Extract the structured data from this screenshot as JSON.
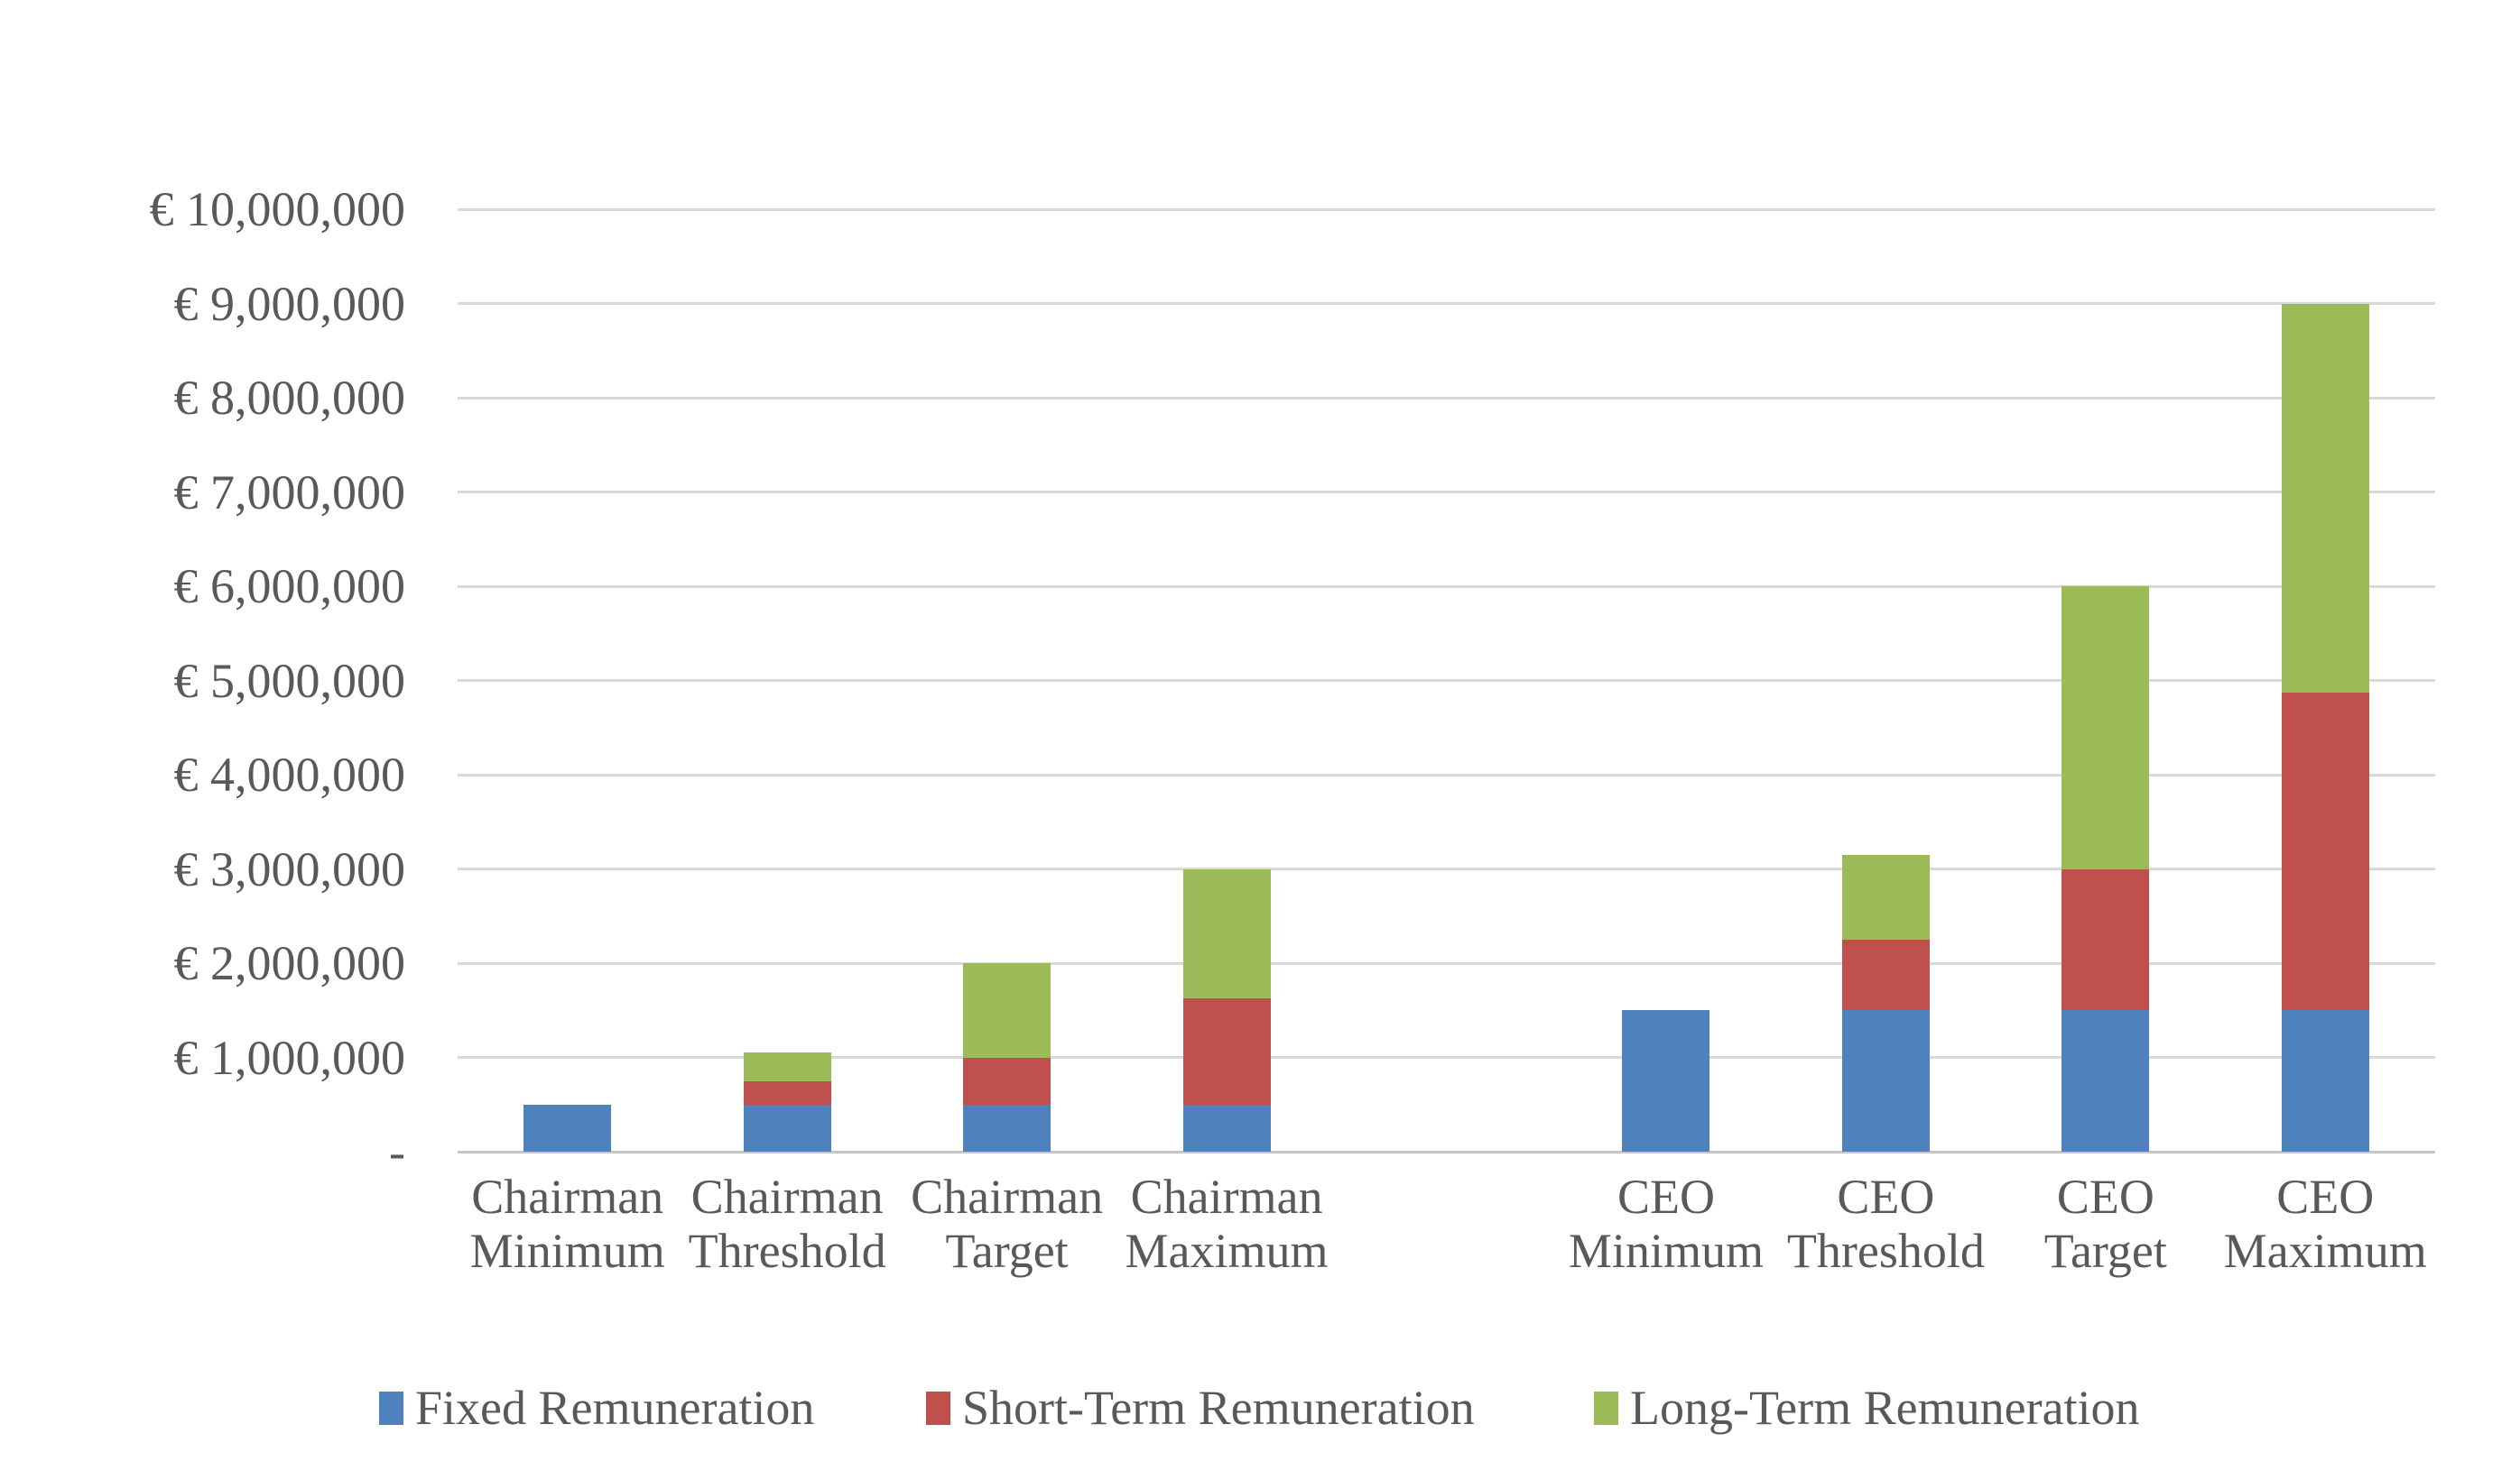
{
  "chart_data": {
    "type": "bar",
    "stacked": true,
    "title": "",
    "currency": "€",
    "y_axis": {
      "min": 0,
      "max": 10000000,
      "step": 1000000,
      "grid": true,
      "tick_labels": [
        "-",
        "€ 1,000,000",
        "€ 2,000,000",
        "€ 3,000,000",
        "€ 4,000,000",
        "€ 5,000,000",
        "€ 6,000,000",
        "€ 7,000,000",
        "€ 8,000,000",
        "€ 9,000,000",
        "€ 10,000,000"
      ]
    },
    "slot_count": 9,
    "categories": [
      {
        "label_lines": [
          "Chairman",
          "Minimum"
        ],
        "slot": 0
      },
      {
        "label_lines": [
          "Chairman",
          "Threshold"
        ],
        "slot": 1
      },
      {
        "label_lines": [
          "Chairman",
          "Target"
        ],
        "slot": 2
      },
      {
        "label_lines": [
          "Chairman",
          "Maximum"
        ],
        "slot": 3
      },
      {
        "label_lines": [
          "CEO",
          "Minimum"
        ],
        "slot": 5
      },
      {
        "label_lines": [
          "CEO",
          "Threshold"
        ],
        "slot": 6
      },
      {
        "label_lines": [
          "CEO",
          "Target"
        ],
        "slot": 7
      },
      {
        "label_lines": [
          "CEO",
          "Maximum"
        ],
        "slot": 8
      }
    ],
    "series": [
      {
        "name": "Fixed Remuneration",
        "color": "#4F81BD",
        "values": [
          500000,
          500000,
          500000,
          500000,
          1500000,
          1500000,
          1500000,
          1500000
        ]
      },
      {
        "name": "Short-Term Remuneration",
        "color": "#C0504D",
        "values": [
          0,
          250000,
          500000,
          1125000,
          0,
          750000,
          1500000,
          3375000
        ]
      },
      {
        "name": "Long-Term Remuneration",
        "color": "#9BBB59",
        "values": [
          0,
          300000,
          1000000,
          1375000,
          0,
          900000,
          3000000,
          4125000
        ]
      }
    ],
    "totals": [
      500000,
      1050000,
      2000000,
      3000000,
      1500000,
      3150000,
      6000000,
      9000000
    ],
    "legend_position": "bottom",
    "colors": {
      "gridline": "#D9D9D9",
      "axis_text": "#595959",
      "background": "#FFFFFF"
    }
  }
}
